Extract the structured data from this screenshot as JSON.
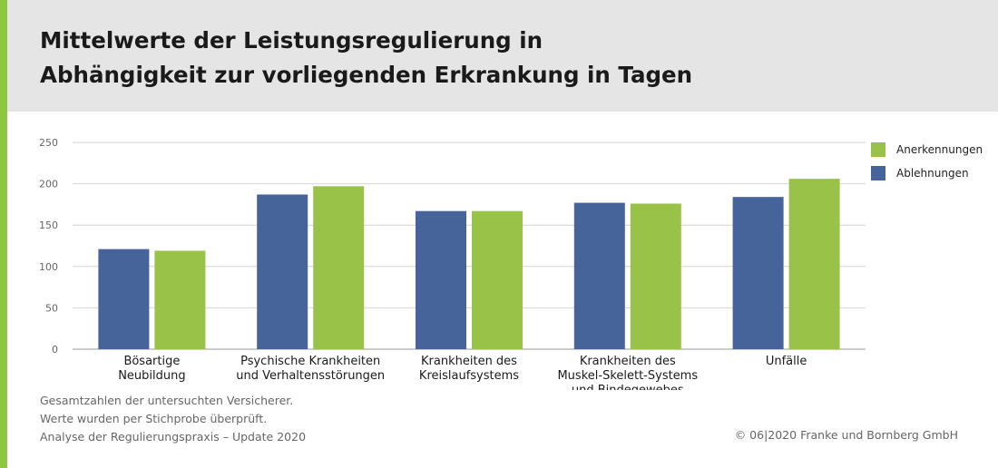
{
  "header": {
    "title_line1": "Mittelwerte der Leistungsregulierung in",
    "title_line2": "Abhängigkeit zur vorliegenden Erkrankung in Tagen"
  },
  "colors": {
    "ablehnungen": "#46649a",
    "anerkennungen": "#99c248",
    "accent": "#8dc63f",
    "header_bg": "#e5e5e5"
  },
  "chart_data": {
    "type": "bar",
    "categories": [
      [
        "Bösartige",
        "Neubildung"
      ],
      [
        "Psychische Krankheiten",
        "und Verhaltensstörungen"
      ],
      [
        "Krankheiten des",
        "Kreislaufsystems"
      ],
      [
        "Krankheiten des",
        "Muskel-Skelett-Systems",
        "und Bindegewebes"
      ],
      [
        "Unfälle"
      ]
    ],
    "series": [
      {
        "name": "Ablehnungen",
        "color": "#46649a",
        "values": [
          121,
          187,
          167,
          177,
          184
        ]
      },
      {
        "name": "Anerkennungen",
        "color": "#99c248",
        "values": [
          119,
          197,
          167,
          176,
          206
        ]
      }
    ],
    "ylim": [
      0,
      250
    ],
    "yticks": [
      "0",
      "50",
      "100",
      "150",
      "200",
      "250"
    ],
    "grid": true,
    "legend": "top-right"
  },
  "legend": {
    "items": [
      {
        "label": "Anerkennungen",
        "color": "#99c248"
      },
      {
        "label": "Ablehnungen",
        "color": "#46649a"
      }
    ]
  },
  "footer": {
    "notes": [
      "Gesamtzahlen der untersuchten Versicherer.",
      "Werte wurden per Stichprobe überprüft.",
      "Analyse der Regulierungspraxis – Update 2020"
    ],
    "copyright": "© 06|2020 Franke und Bornberg GmbH"
  }
}
